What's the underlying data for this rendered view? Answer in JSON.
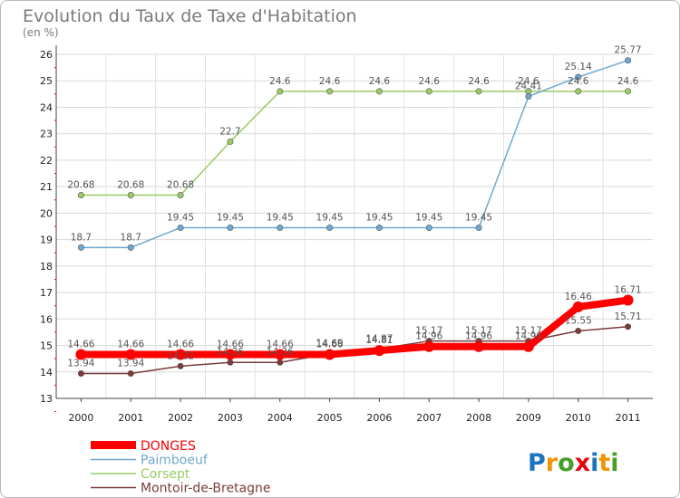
{
  "chart_data": {
    "type": "line",
    "title": "Evolution du Taux de Taxe d'Habitation",
    "ylabel": "(en %)",
    "xlabel": "",
    "x": [
      "2000",
      "2001",
      "2002",
      "2003",
      "2004",
      "2005",
      "2006",
      "2007",
      "2008",
      "2009",
      "2010",
      "2011"
    ],
    "ylim": [
      13,
      26
    ],
    "yticks": [
      13,
      14,
      15,
      16,
      17,
      18,
      19,
      20,
      21,
      22,
      23,
      24,
      25,
      26
    ],
    "grid": true,
    "legend_position": "bottom-left",
    "series": [
      {
        "name": "Corsept",
        "color": "#99cc66",
        "values": [
          20.68,
          20.68,
          20.68,
          22.7,
          24.6,
          24.6,
          24.6,
          24.6,
          24.6,
          24.6,
          24.6,
          24.6
        ],
        "labels": [
          "20.68",
          "20.68",
          "20.68",
          "22.7",
          "24.6",
          "24.6",
          "24.6",
          "24.6",
          "24.6",
          "24.6",
          "24.6",
          "24.6"
        ]
      },
      {
        "name": "Paimboeuf",
        "color": "#6fa8d0",
        "values": [
          18.7,
          18.7,
          19.45,
          19.45,
          19.45,
          19.45,
          19.45,
          19.45,
          19.45,
          24.41,
          25.14,
          25.77
        ],
        "labels": [
          "18.7",
          "18.7",
          "19.45",
          "19.45",
          "19.45",
          "19.45",
          "19.45",
          "19.45",
          "19.45",
          "24.41",
          "25.14",
          "25.77"
        ]
      },
      {
        "name": "Montoir-de-Bretagne",
        "color": "#7b3b3b",
        "values": [
          13.94,
          13.94,
          14.22,
          14.36,
          14.36,
          14.69,
          14.87,
          15.17,
          15.17,
          15.17,
          15.55,
          15.71
        ],
        "labels": [
          "13.94",
          "13.94",
          "14.22",
          "14.36",
          "14.36",
          "14.69",
          "14.87",
          "15.17",
          "15.17",
          "15.17",
          "15.55",
          "15.71"
        ]
      },
      {
        "name": "DONGES",
        "color": "#ff0000",
        "values": [
          14.66,
          14.66,
          14.66,
          14.66,
          14.66,
          14.66,
          14.81,
          14.96,
          14.96,
          14.96,
          16.46,
          16.71
        ],
        "labels": [
          "14.66",
          "14.66",
          "14.66",
          "14.66",
          "14.66",
          "14.66",
          "14.81",
          "14.96",
          "14.96",
          "14.96",
          "16.46",
          "16.71"
        ]
      }
    ],
    "legend": [
      {
        "name": "DONGES",
        "color": "#ff0000"
      },
      {
        "name": "Paimboeuf",
        "color": "#6fa8d0"
      },
      {
        "name": "Corsept",
        "color": "#99cc66"
      },
      {
        "name": "Montoir-de-Bretagne",
        "color": "#7b3b3b"
      }
    ]
  },
  "logo": {
    "text": "Proxiti"
  }
}
